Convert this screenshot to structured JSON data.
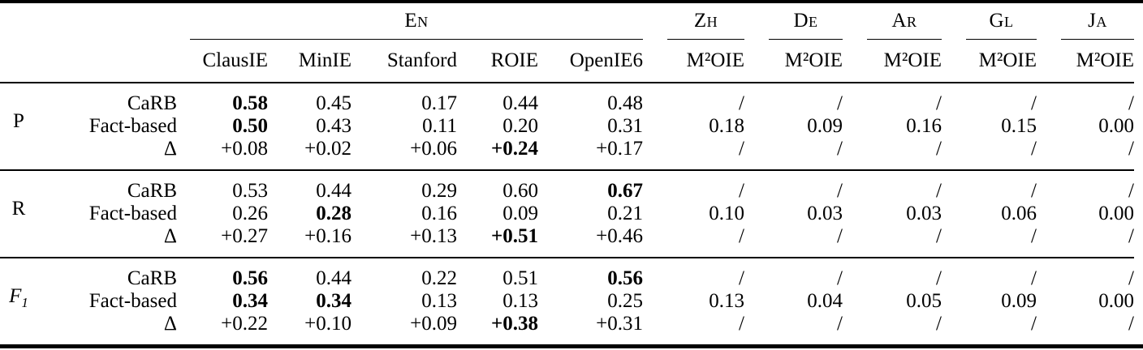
{
  "table": {
    "na_symbol": "/",
    "column_groups": [
      {
        "label": "En",
        "span": 5
      },
      {
        "label": "Zh",
        "span": 1
      },
      {
        "label": "De",
        "span": 1
      },
      {
        "label": "Ar",
        "span": 1
      },
      {
        "label": "Gl",
        "span": 1
      },
      {
        "label": "Ja",
        "span": 1
      }
    ],
    "columns": [
      "ClausIE",
      "MinIE",
      "Stanford",
      "ROIE",
      "OpenIE6",
      "M²OIE",
      "M²OIE",
      "M²OIE",
      "M²OIE",
      "M²OIE"
    ],
    "row_blocks": [
      {
        "metric": "P",
        "metric_sub": "",
        "metric_italic": false,
        "rows": [
          {
            "label": "CaRB",
            "values": [
              "0.58",
              "0.45",
              "0.17",
              "0.44",
              "0.48",
              "/",
              "/",
              "/",
              "/",
              "/"
            ],
            "bold": [
              0
            ]
          },
          {
            "label": "Fact-based",
            "values": [
              "0.50",
              "0.43",
              "0.11",
              "0.20",
              "0.31",
              "0.18",
              "0.09",
              "0.16",
              "0.15",
              "0.00"
            ],
            "bold": [
              0
            ]
          },
          {
            "label": "Δ",
            "values": [
              "+0.08",
              "+0.02",
              "+0.06",
              "+0.24",
              "+0.17",
              "/",
              "/",
              "/",
              "/",
              "/"
            ],
            "bold": [
              3
            ]
          }
        ]
      },
      {
        "metric": "R",
        "metric_sub": "",
        "metric_italic": false,
        "rows": [
          {
            "label": "CaRB",
            "values": [
              "0.53",
              "0.44",
              "0.29",
              "0.60",
              "0.67",
              "/",
              "/",
              "/",
              "/",
              "/"
            ],
            "bold": [
              4
            ]
          },
          {
            "label": "Fact-based",
            "values": [
              "0.26",
              "0.28",
              "0.16",
              "0.09",
              "0.21",
              "0.10",
              "0.03",
              "0.03",
              "0.06",
              "0.00"
            ],
            "bold": [
              1
            ]
          },
          {
            "label": "Δ",
            "values": [
              "+0.27",
              "+0.16",
              "+0.13",
              "+0.51",
              "+0.46",
              "/",
              "/",
              "/",
              "/",
              "/"
            ],
            "bold": [
              3
            ]
          }
        ]
      },
      {
        "metric": "F",
        "metric_sub": "1",
        "metric_italic": true,
        "rows": [
          {
            "label": "CaRB",
            "values": [
              "0.56",
              "0.44",
              "0.22",
              "0.51",
              "0.56",
              "/",
              "/",
              "/",
              "/",
              "/"
            ],
            "bold": [
              0,
              4
            ]
          },
          {
            "label": "Fact-based",
            "values": [
              "0.34",
              "0.34",
              "0.13",
              "0.13",
              "0.25",
              "0.13",
              "0.04",
              "0.05",
              "0.09",
              "0.00"
            ],
            "bold": [
              0,
              1
            ]
          },
          {
            "label": "Δ",
            "values": [
              "+0.22",
              "+0.10",
              "+0.09",
              "+0.38",
              "+0.31",
              "/",
              "/",
              "/",
              "/",
              "/"
            ],
            "bold": [
              3
            ]
          }
        ]
      }
    ]
  }
}
